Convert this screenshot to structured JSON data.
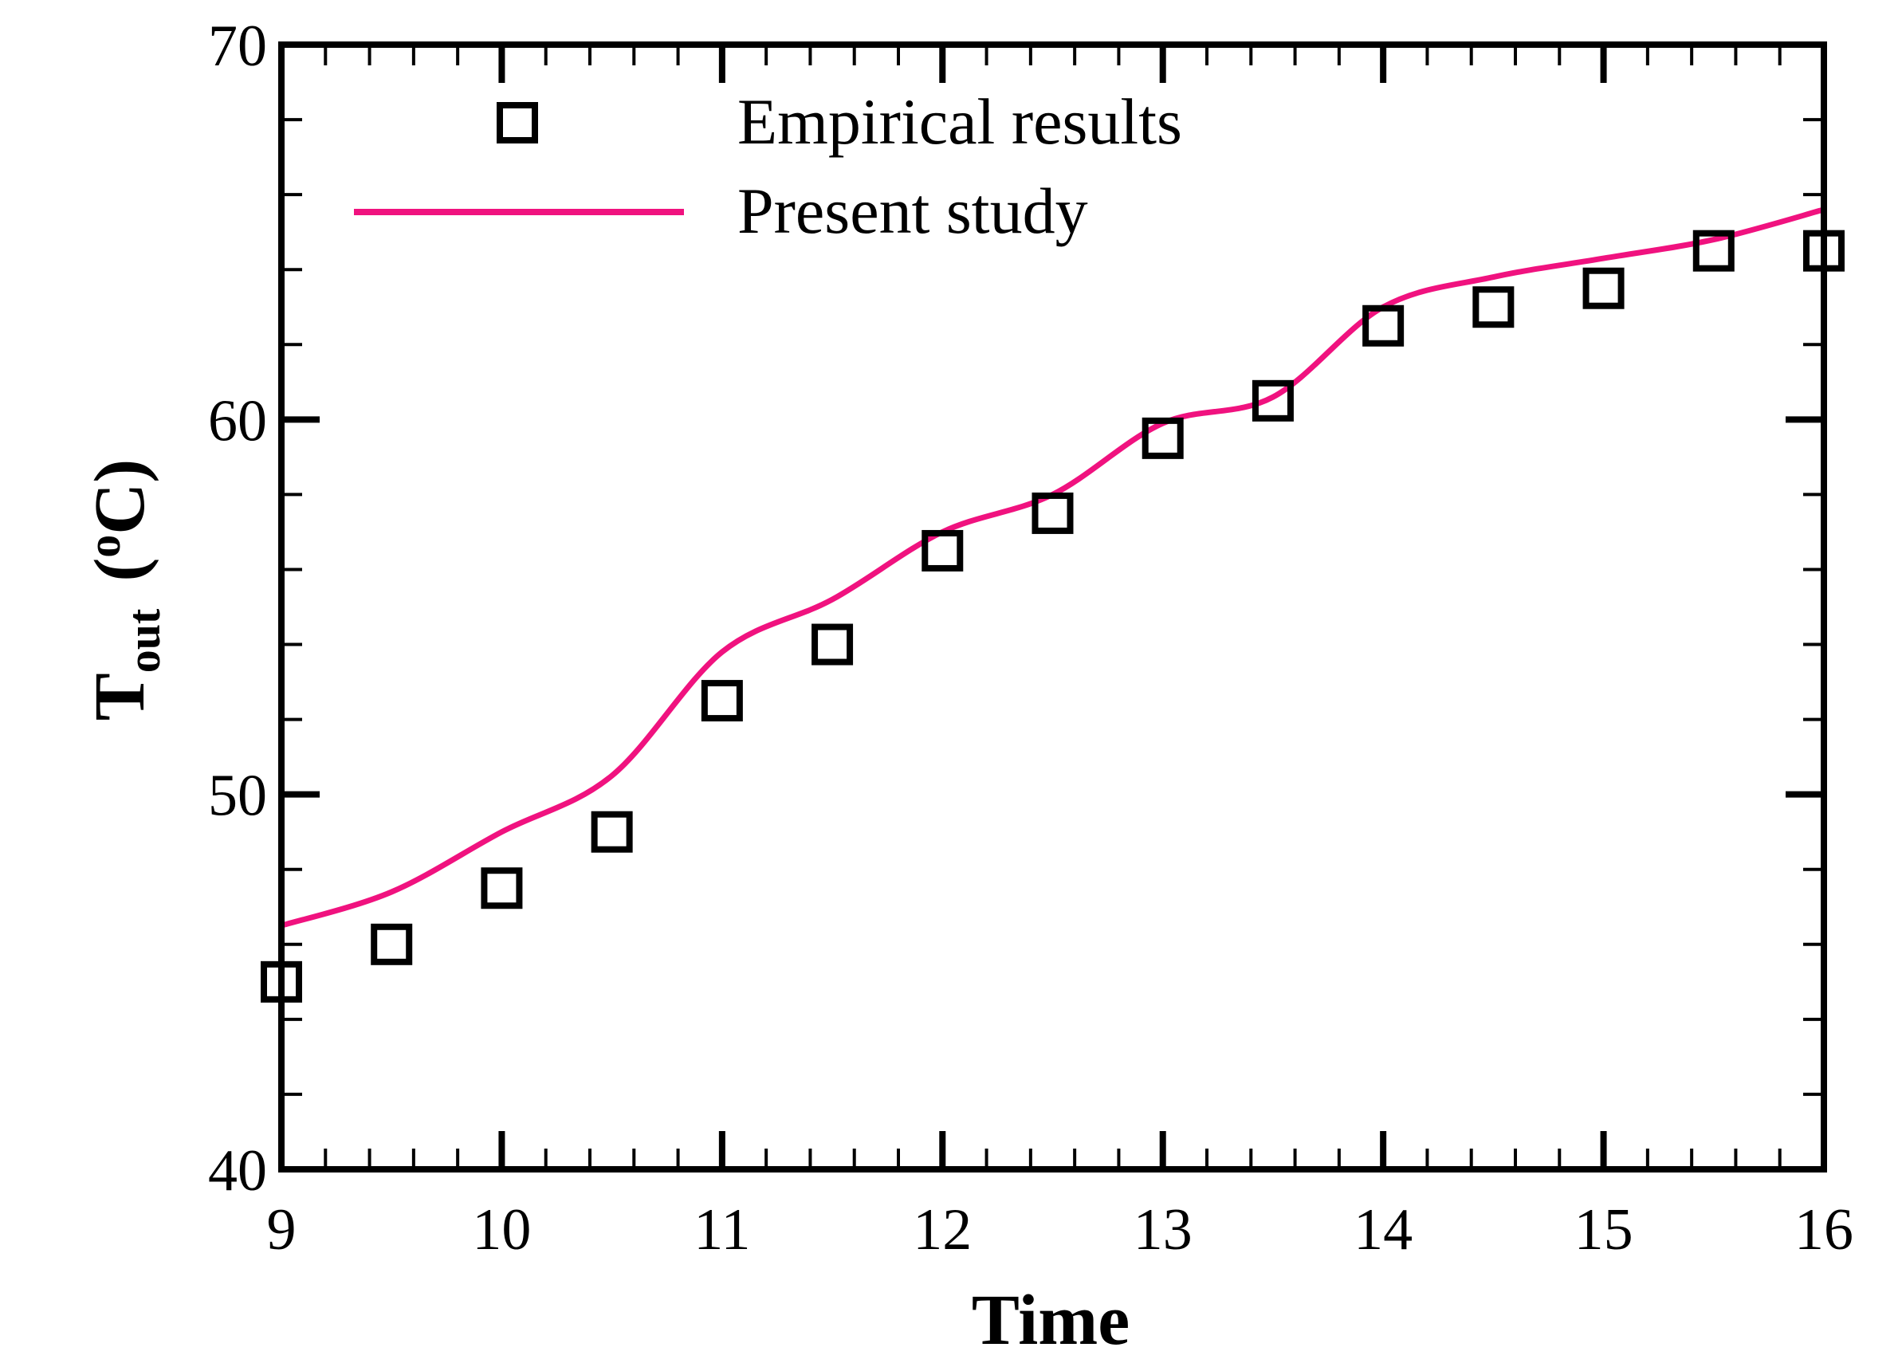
{
  "chart_data": {
    "type": "line",
    "title": "",
    "xlabel": "Time",
    "ylabel": {
      "main": "T",
      "subscript": "out",
      "unit": "(",
      "unit_degree": "o",
      "unit_letter": "C)"
    },
    "xlim": [
      9,
      16
    ],
    "ylim": [
      40,
      70
    ],
    "x_ticks": [
      9,
      10,
      11,
      12,
      13,
      14,
      15,
      16
    ],
    "x_tick_labels": [
      "9",
      "10",
      "11",
      "12",
      "13",
      "14",
      "15",
      "16"
    ],
    "y_ticks": [
      40,
      50,
      60,
      70
    ],
    "y_tick_labels": [
      "40",
      "50",
      "60",
      "70"
    ],
    "x_minor_step": 0.2,
    "y_minor_step": 2,
    "grid": false,
    "legend_position": "top-left",
    "series": [
      {
        "name": "Empirical results",
        "kind": "scatter",
        "marker": "square-open",
        "color": "#000000",
        "x": [
          9,
          9.5,
          10,
          10.5,
          11,
          11.5,
          12,
          12.5,
          13,
          13.5,
          14,
          14.5,
          15,
          15.5,
          16
        ],
        "y": [
          45,
          46,
          47.5,
          49,
          52.5,
          54,
          56.5,
          57.5,
          59.5,
          60.5,
          62.5,
          63,
          63.5,
          64.5,
          64.5
        ]
      },
      {
        "name": "Present study",
        "kind": "line",
        "color": "#f0127f",
        "x": [
          9,
          9.5,
          10,
          10.5,
          11,
          11.5,
          12,
          12.5,
          13,
          13.5,
          14,
          14.5,
          15,
          15.5,
          16
        ],
        "y": [
          46.5,
          47.4,
          49,
          50.5,
          53.8,
          55.2,
          57,
          58,
          59.9,
          60.6,
          63,
          63.8,
          64.3,
          64.8,
          65.6
        ]
      }
    ]
  }
}
